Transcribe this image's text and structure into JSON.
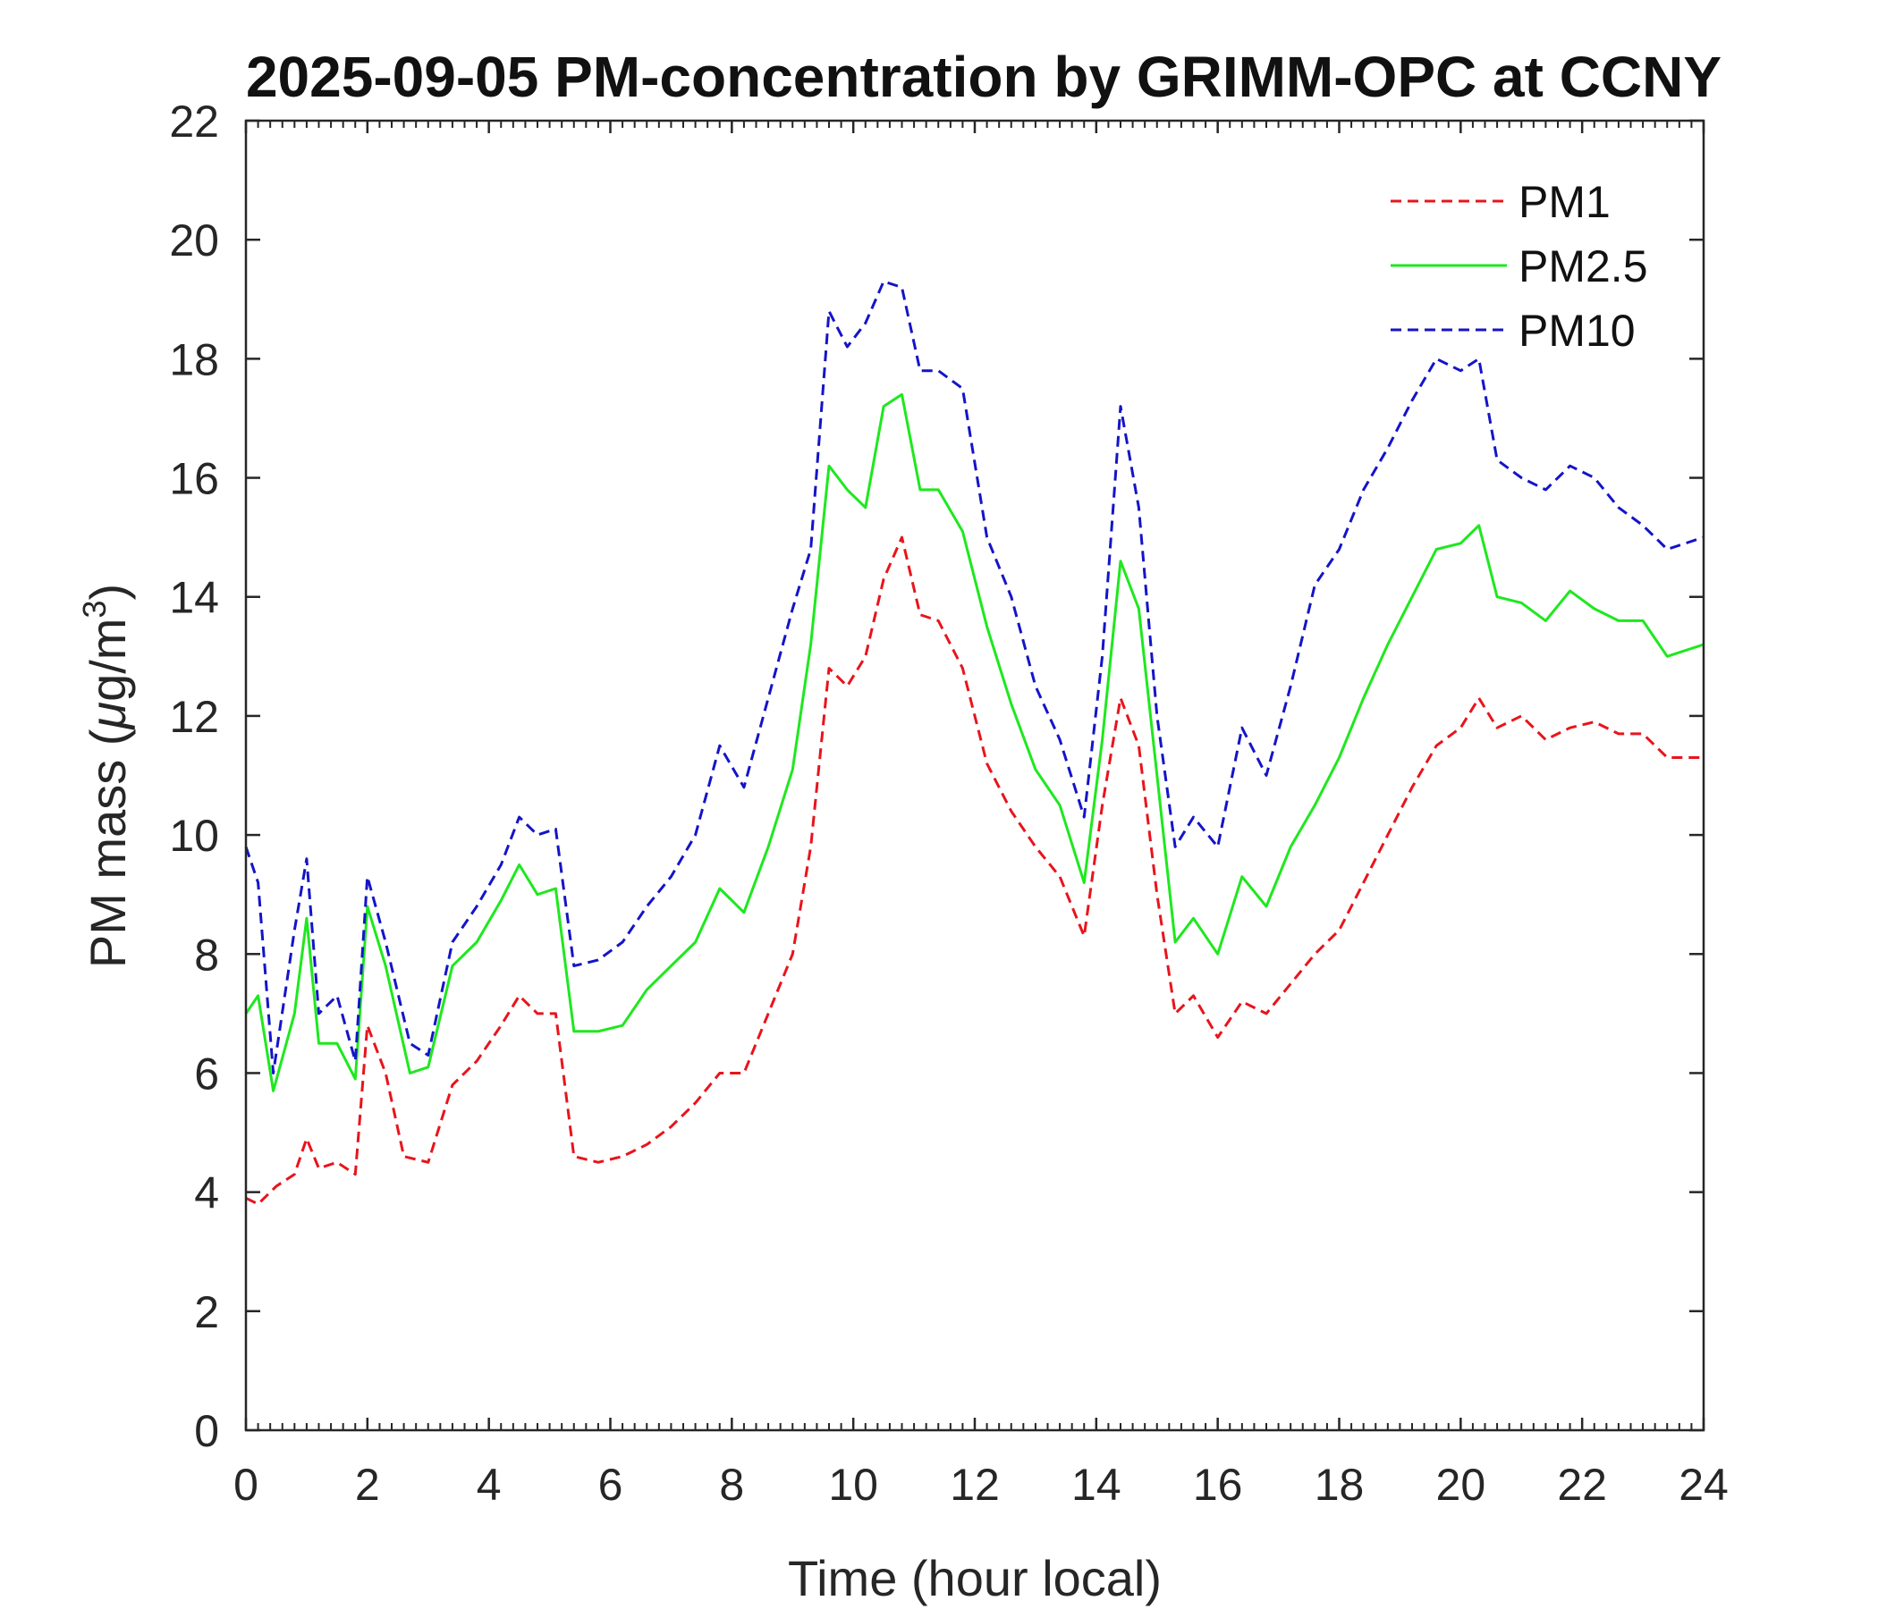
{
  "chart_data": {
    "type": "line",
    "title": "2025-09-05 PM-concentration by GRIMM-OPC at CCNY",
    "xlabel": "Time (hour local)",
    "ylabel_main": "PM mass (",
    "ylabel_mu": "μ",
    "ylabel_unit": "g/m",
    "ylabel_sup": "3",
    "ylabel_close": ")",
    "xlim": [
      0,
      24
    ],
    "ylim": [
      0,
      22
    ],
    "xticks": [
      "0",
      "2",
      "4",
      "6",
      "8",
      "10",
      "12",
      "14",
      "16",
      "18",
      "20",
      "22",
      "24"
    ],
    "yticks": [
      "0",
      "2",
      "4",
      "6",
      "8",
      "10",
      "12",
      "14",
      "16",
      "18",
      "20",
      "22"
    ],
    "grid": false,
    "legend_position": "top-right",
    "series": [
      {
        "name": "PM1",
        "color": "#e8141c",
        "style": "dashed",
        "x": [
          0,
          0.2,
          0.5,
          0.8,
          1.0,
          1.2,
          1.5,
          1.8,
          2.0,
          2.3,
          2.6,
          3.0,
          3.4,
          3.8,
          4.2,
          4.5,
          4.8,
          5.1,
          5.4,
          5.8,
          6.2,
          6.6,
          7.0,
          7.4,
          7.8,
          8.2,
          8.6,
          9.0,
          9.3,
          9.6,
          9.9,
          10.2,
          10.5,
          10.8,
          11.1,
          11.4,
          11.8,
          12.2,
          12.6,
          13.0,
          13.4,
          13.8,
          14.1,
          14.4,
          14.7,
          15.0,
          15.3,
          15.6,
          16.0,
          16.4,
          16.8,
          17.2,
          17.6,
          18.0,
          18.4,
          18.8,
          19.2,
          19.6,
          20.0,
          20.3,
          20.6,
          21.0,
          21.4,
          21.8,
          22.2,
          22.6,
          23.0,
          23.4,
          24.0
        ],
        "values": [
          3.9,
          3.8,
          4.1,
          4.3,
          4.9,
          4.4,
          4.5,
          4.3,
          6.8,
          6.0,
          4.6,
          4.5,
          5.8,
          6.2,
          6.8,
          7.3,
          7.0,
          7.0,
          4.6,
          4.5,
          4.6,
          4.8,
          5.1,
          5.5,
          6.0,
          6.0,
          7.0,
          8.0,
          9.8,
          12.8,
          12.5,
          13.0,
          14.3,
          15.0,
          13.7,
          13.6,
          12.8,
          11.2,
          10.4,
          9.8,
          9.3,
          8.3,
          10.5,
          12.3,
          11.5,
          9.0,
          7.0,
          7.3,
          6.6,
          7.2,
          7.0,
          7.5,
          8.0,
          8.4,
          9.2,
          10.0,
          10.8,
          11.5,
          11.8,
          12.3,
          11.8,
          12.0,
          11.6,
          11.8,
          11.9,
          11.7,
          11.7,
          11.3,
          11.3
        ]
      },
      {
        "name": "PM2.5",
        "color": "#1ee81e",
        "style": "solid",
        "x": [
          0,
          0.2,
          0.45,
          0.8,
          1.0,
          1.2,
          1.5,
          1.8,
          2.0,
          2.3,
          2.7,
          3.0,
          3.4,
          3.8,
          4.2,
          4.5,
          4.8,
          5.1,
          5.4,
          5.8,
          6.2,
          6.6,
          7.0,
          7.4,
          7.8,
          8.2,
          8.6,
          9.0,
          9.3,
          9.6,
          9.9,
          10.2,
          10.5,
          10.8,
          11.1,
          11.4,
          11.8,
          12.2,
          12.6,
          13.0,
          13.4,
          13.8,
          14.1,
          14.4,
          14.7,
          15.0,
          15.3,
          15.6,
          16.0,
          16.4,
          16.8,
          17.2,
          17.6,
          18.0,
          18.4,
          18.8,
          19.2,
          19.6,
          20.0,
          20.3,
          20.6,
          21.0,
          21.4,
          21.8,
          22.2,
          22.6,
          23.0,
          23.4,
          24.0
        ],
        "values": [
          7.0,
          7.3,
          5.7,
          7.0,
          8.6,
          6.5,
          6.5,
          5.9,
          8.8,
          7.8,
          6.0,
          6.1,
          7.8,
          8.2,
          8.9,
          9.5,
          9.0,
          9.1,
          6.7,
          6.7,
          6.8,
          7.4,
          7.8,
          8.2,
          9.1,
          8.7,
          9.8,
          11.1,
          13.2,
          16.2,
          15.8,
          15.5,
          17.2,
          17.4,
          15.8,
          15.8,
          15.1,
          13.5,
          12.2,
          11.1,
          10.5,
          9.2,
          11.6,
          14.6,
          13.8,
          11.0,
          8.2,
          8.6,
          8.0,
          9.3,
          8.8,
          9.8,
          10.5,
          11.3,
          12.3,
          13.2,
          14.0,
          14.8,
          14.9,
          15.2,
          14.0,
          13.9,
          13.6,
          14.1,
          13.8,
          13.6,
          13.6,
          13.0,
          13.2
        ]
      },
      {
        "name": "PM10",
        "color": "#1414c8",
        "style": "dashed",
        "x": [
          0,
          0.2,
          0.45,
          0.8,
          1.0,
          1.2,
          1.5,
          1.8,
          2.0,
          2.3,
          2.7,
          3.0,
          3.4,
          3.8,
          4.2,
          4.5,
          4.8,
          5.1,
          5.4,
          5.8,
          6.2,
          6.6,
          7.0,
          7.4,
          7.8,
          8.2,
          8.6,
          9.0,
          9.3,
          9.6,
          9.9,
          10.2,
          10.5,
          10.8,
          11.1,
          11.4,
          11.8,
          12.2,
          12.6,
          13.0,
          13.4,
          13.8,
          14.1,
          14.4,
          14.7,
          15.0,
          15.3,
          15.6,
          16.0,
          16.4,
          16.8,
          17.2,
          17.6,
          18.0,
          18.4,
          18.8,
          19.2,
          19.6,
          20.0,
          20.3,
          20.6,
          21.0,
          21.4,
          21.8,
          22.2,
          22.6,
          23.0,
          23.4,
          24.0
        ],
        "values": [
          9.8,
          9.2,
          6.0,
          8.4,
          9.6,
          7.0,
          7.3,
          6.2,
          9.3,
          8.2,
          6.5,
          6.3,
          8.2,
          8.8,
          9.5,
          10.3,
          10.0,
          10.1,
          7.8,
          7.9,
          8.2,
          8.8,
          9.3,
          10.0,
          11.5,
          10.8,
          12.3,
          13.8,
          14.8,
          18.8,
          18.2,
          18.6,
          19.3,
          19.2,
          17.8,
          17.8,
          17.5,
          15.0,
          14.0,
          12.5,
          11.6,
          10.3,
          13.0,
          17.2,
          15.5,
          12.0,
          9.8,
          10.3,
          9.8,
          11.8,
          11.0,
          12.5,
          14.2,
          14.8,
          15.8,
          16.5,
          17.3,
          18.0,
          17.8,
          18.0,
          16.3,
          16.0,
          15.8,
          16.2,
          16.0,
          15.5,
          15.2,
          14.8,
          15.0
        ]
      }
    ]
  }
}
